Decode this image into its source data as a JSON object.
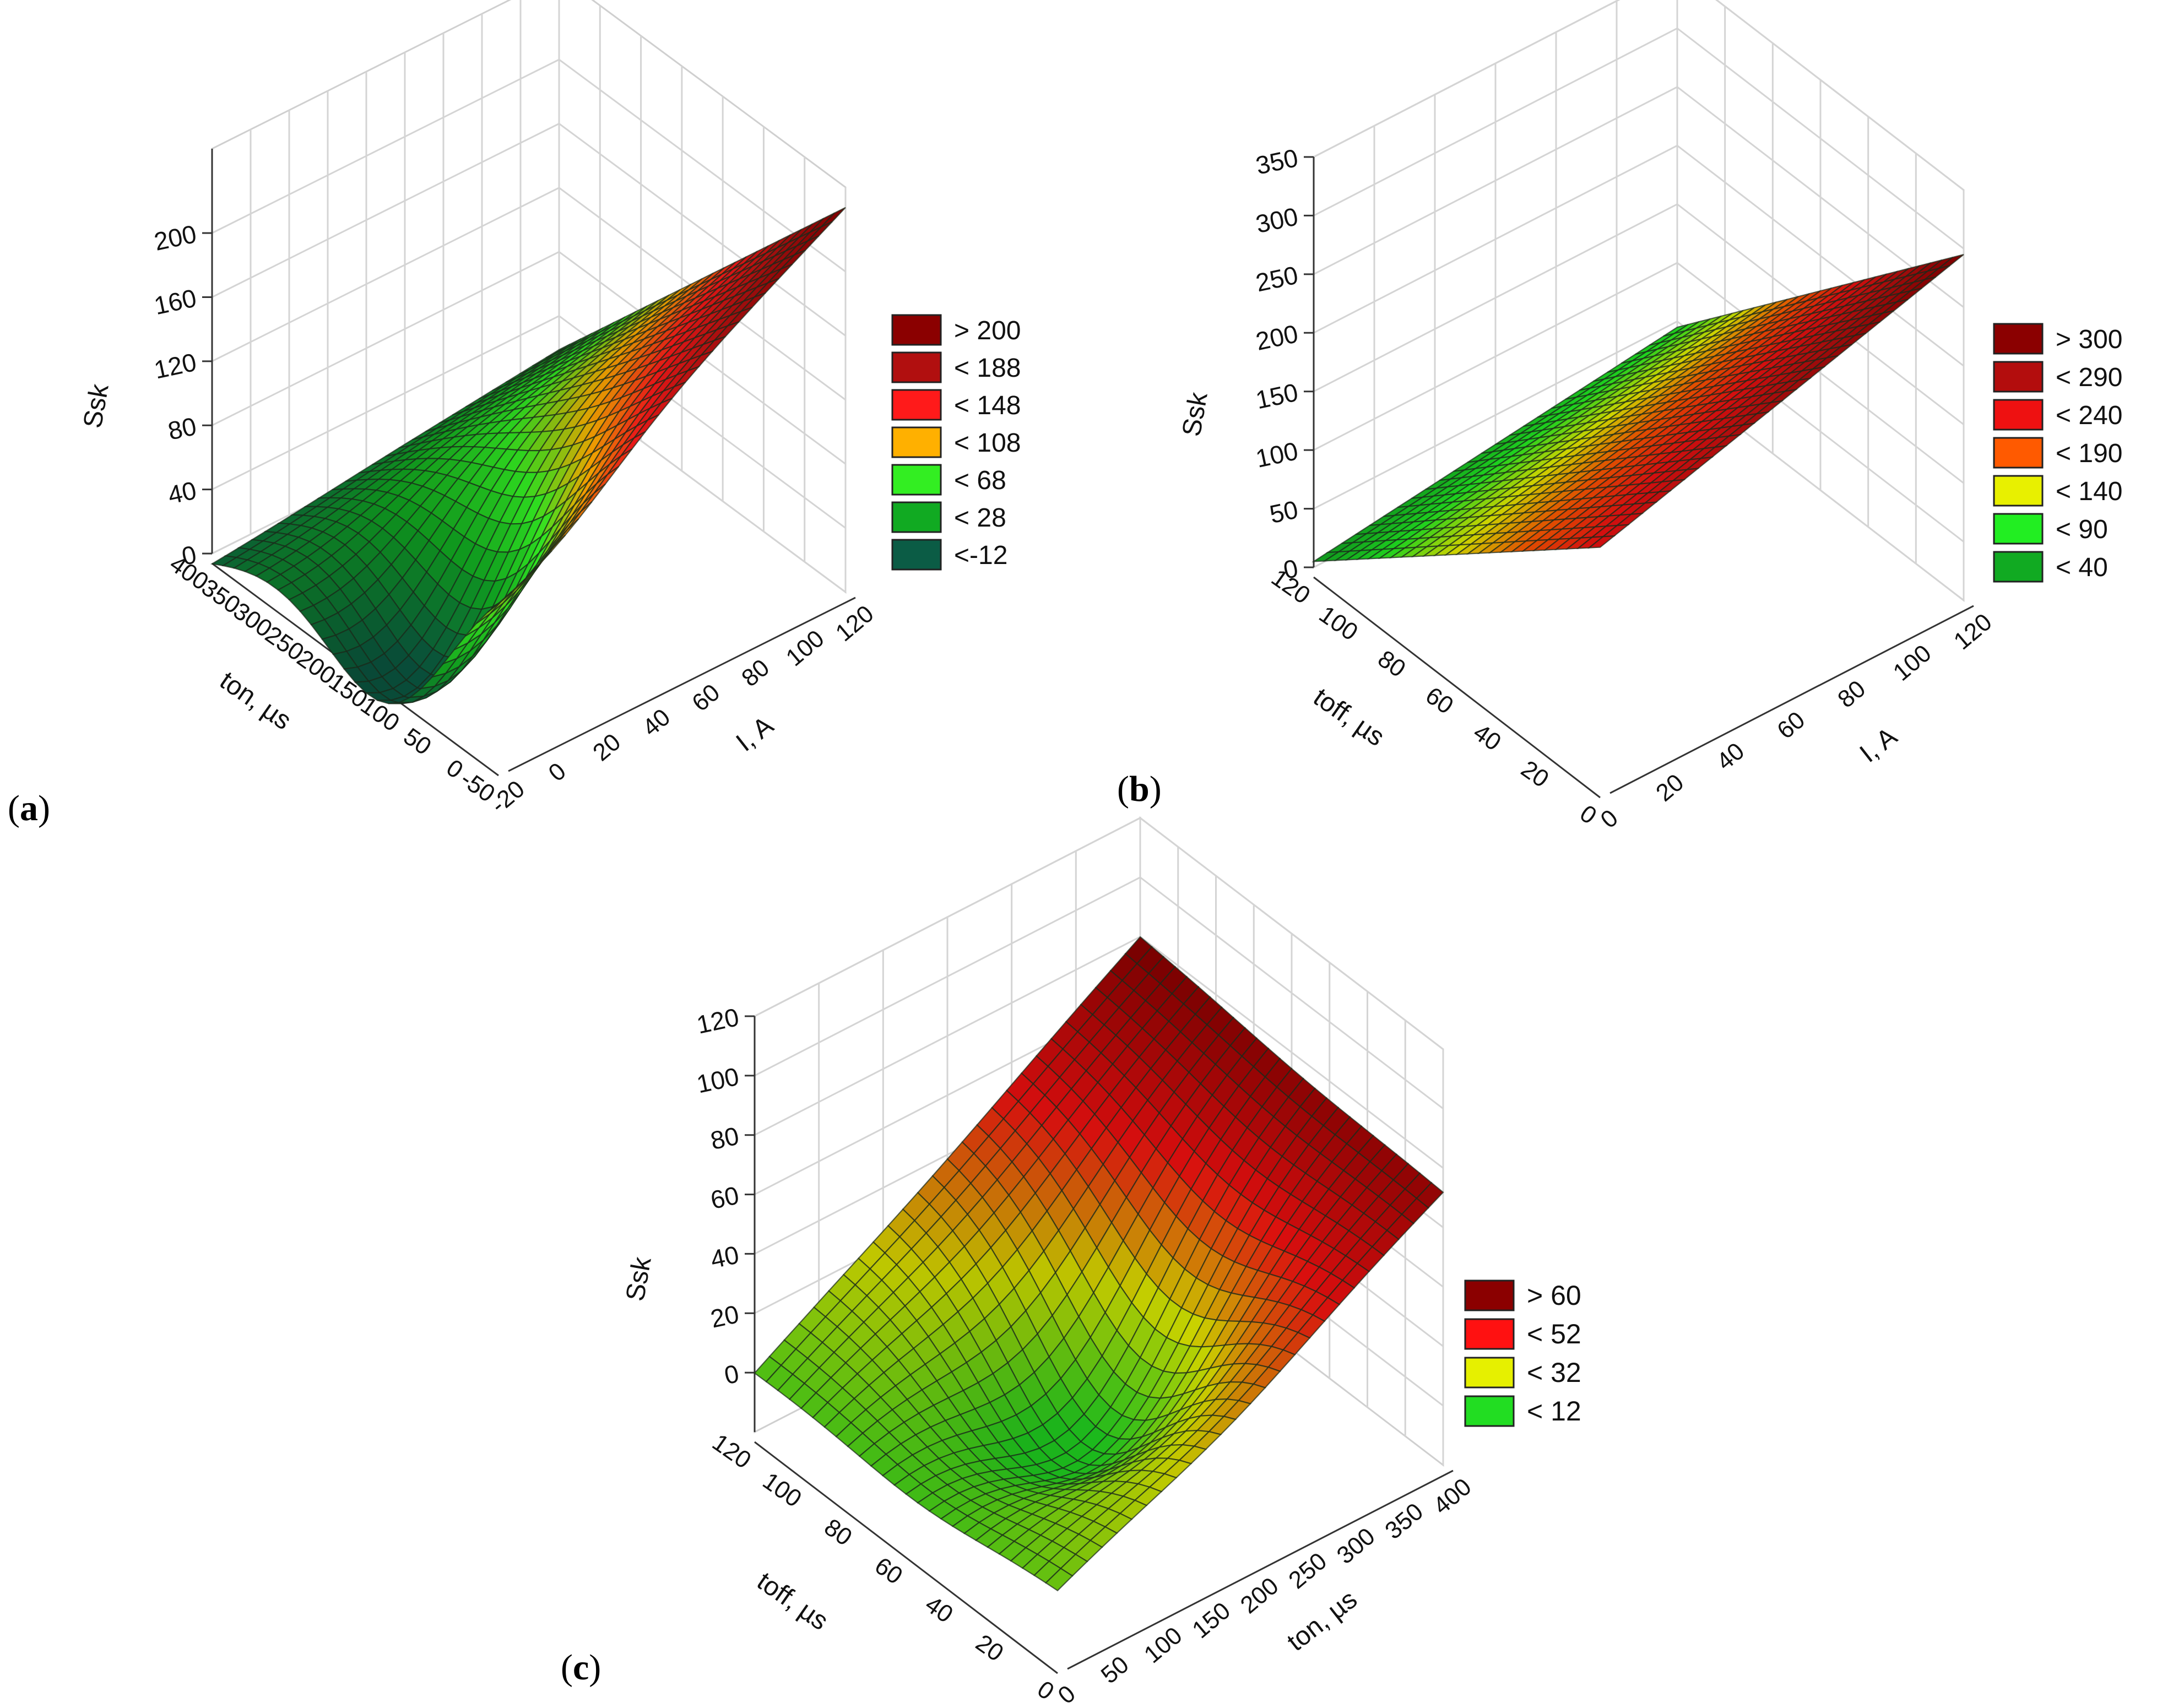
{
  "figure": {
    "panels": [
      {
        "paren_open": "(",
        "letter": "a",
        "paren_close": ")"
      },
      {
        "paren_open": "(",
        "letter": "b",
        "paren_close": ")"
      },
      {
        "paren_open": "(",
        "letter": "c",
        "paren_close": ")"
      }
    ]
  },
  "chart_data": [
    {
      "type": "surface3d",
      "panel": "a",
      "zlabel": "Ssk",
      "xlabel": "I, A",
      "ylabel": "ton, µs",
      "x_ticks": [
        "-20",
        "0",
        "20",
        "40",
        "60",
        "80",
        "100",
        "120"
      ],
      "y_ticks": [
        "-50",
        "0",
        "50",
        "100",
        "150",
        "200",
        "250",
        "300",
        "350",
        "400"
      ],
      "z_ticks": [
        "0",
        "40",
        "80",
        "120",
        "160",
        "200"
      ],
      "xlim": [
        -20,
        120
      ],
      "ylim": [
        -50,
        400
      ],
      "zlim": [
        0,
        240
      ],
      "surface_corners": {
        "I0_ton400": 18,
        "I0_ton0": -5,
        "I110_ton0": 112,
        "I110_ton400": 228,
        "min_near": -15
      },
      "legend": [
        {
          "label": "> 200",
          "color": "#8b0000"
        },
        {
          "label": "< 188",
          "color": "#b10f0f"
        },
        {
          "label": "< 148",
          "color": "#ff1a1a"
        },
        {
          "label": "< 108",
          "color": "#ffb000"
        },
        {
          "label": "< 68",
          "color": "#33ee22"
        },
        {
          "label": "< 28",
          "color": "#11aa22"
        },
        {
          "label": "<-12",
          "color": "#0b5c45"
        }
      ]
    },
    {
      "type": "surface3d",
      "panel": "b",
      "zlabel": "Ssk",
      "xlabel": "I, A",
      "ylabel": "toff, µs",
      "x_ticks": [
        "0",
        "20",
        "40",
        "60",
        "80",
        "100",
        "120"
      ],
      "y_ticks": [
        "0",
        "20",
        "40",
        "60",
        "80",
        "100",
        "120"
      ],
      "z_ticks": [
        "0",
        "50",
        "100",
        "150",
        "200",
        "250",
        "300",
        "350"
      ],
      "xlim": [
        0,
        120
      ],
      "ylim": [
        0,
        120
      ],
      "zlim": [
        0,
        350
      ],
      "surface_corners": {
        "I0_toff120": 45,
        "I0_toff0": 5,
        "I110_toff0": 205,
        "I110_toff120": 295
      },
      "legend": [
        {
          "label": "> 300",
          "color": "#8b0000"
        },
        {
          "label": "< 290",
          "color": "#b30d0d"
        },
        {
          "label": "< 240",
          "color": "#ee1111"
        },
        {
          "label": "< 190",
          "color": "#ff5a00"
        },
        {
          "label": "< 140",
          "color": "#e8f000"
        },
        {
          "label": "< 90",
          "color": "#22ee22"
        },
        {
          "label": "< 40",
          "color": "#11aa22"
        }
      ]
    },
    {
      "type": "surface3d",
      "panel": "c",
      "zlabel": "Ssk",
      "xlabel": "ton, µs",
      "ylabel": "toff, µs",
      "x_ticks": [
        "0",
        "50",
        "100",
        "150",
        "200",
        "250",
        "300",
        "350",
        "400"
      ],
      "y_ticks": [
        "0",
        "20",
        "40",
        "60",
        "80",
        "100",
        "120"
      ],
      "z_ticks": [
        "0",
        "20",
        "40",
        "60",
        "80",
        "100",
        "120"
      ],
      "xlim": [
        0,
        400
      ],
      "ylim": [
        0,
        120
      ],
      "zlim": [
        -20,
        120
      ],
      "surface_corners": {
        "ton0_toff110": 80,
        "ton0_toff0": 0,
        "ton400_toff0": 5,
        "ton400_toff110": 72
      },
      "legend": [
        {
          "label": "> 60",
          "color": "#8b0000"
        },
        {
          "label": "< 52",
          "color": "#ff1111"
        },
        {
          "label": "< 32",
          "color": "#e6f000"
        },
        {
          "label": "< 12",
          "color": "#22dd22"
        }
      ]
    }
  ]
}
